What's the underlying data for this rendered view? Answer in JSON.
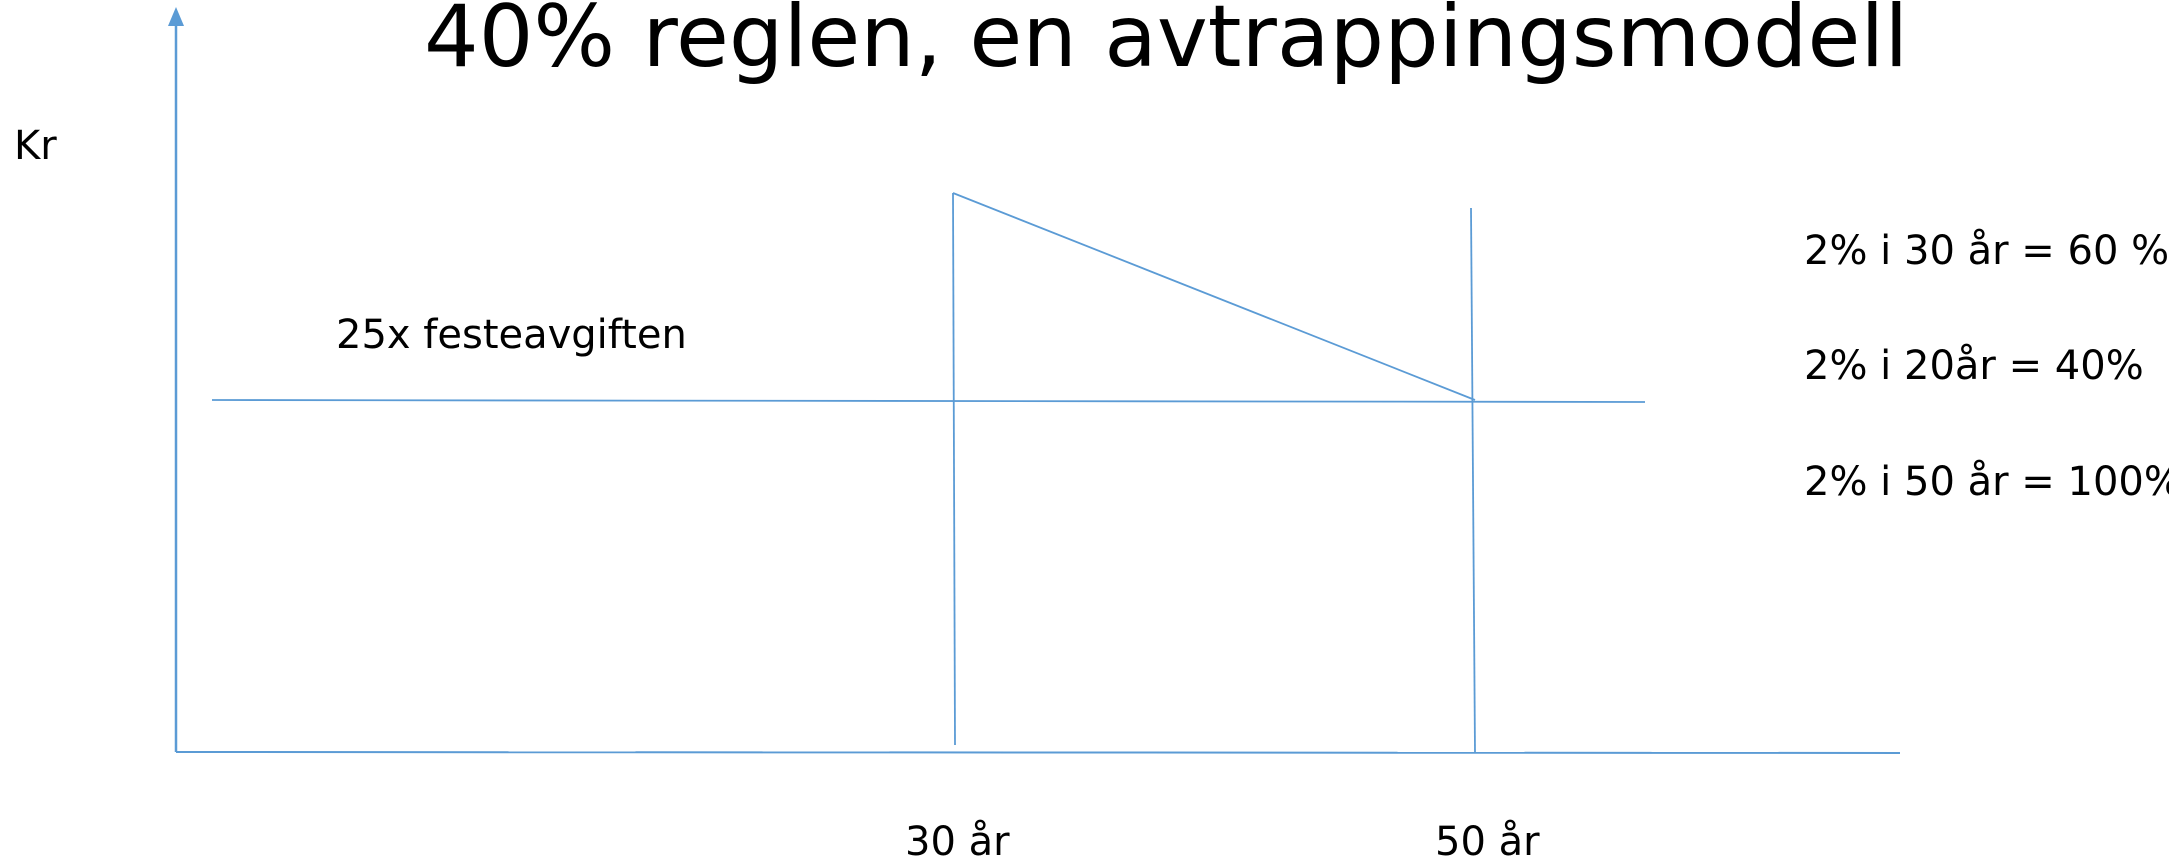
{
  "title": "40% reglen, en avtrappingsmodell",
  "y_axis_label": "Kr",
  "baseline_label": "25x festeavgiften",
  "x_ticks": [
    "30 år",
    "50 år"
  ],
  "notes": [
    "2% i 30 år = 60 %",
    "2% i 20år = 40%",
    "2% i 50 år = 100%"
  ],
  "colors": {
    "line": "#5b9bd5",
    "text": "#000000"
  }
}
